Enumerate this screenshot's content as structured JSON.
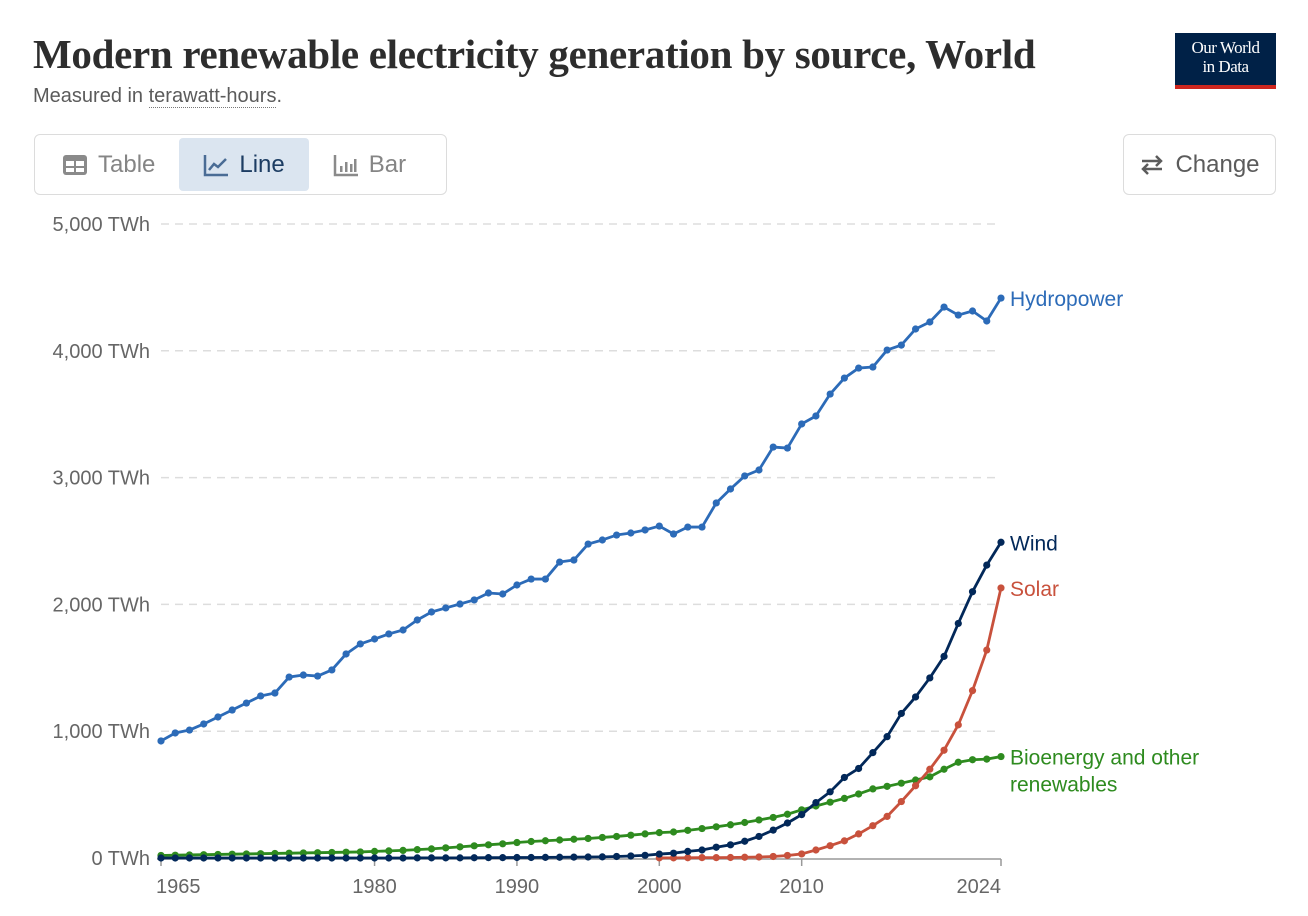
{
  "header": {
    "title": "Modern renewable electricity generation by source, World",
    "subtitle_prefix": "Measured in ",
    "subtitle_unit": "terawatt-hours",
    "subtitle_suffix": ".",
    "logo_line1": "Our World",
    "logo_line2": "in Data"
  },
  "tabs": [
    {
      "label": "Table",
      "icon": "table-icon"
    },
    {
      "label": "Line",
      "icon": "line-chart-icon",
      "active": true
    },
    {
      "label": "Bar",
      "icon": "bar-chart-icon"
    }
  ],
  "change_button": {
    "label": "Change",
    "icon": "swap-arrows-icon"
  },
  "colors": {
    "Hydropower": "#2c6bb8",
    "Wind": "#022859",
    "Solar": "#c8513c",
    "Bioenergy": "#2e8b1f",
    "grid": "#dddddd",
    "axis": "#999999"
  },
  "chart_data": {
    "type": "line",
    "title": "Modern renewable electricity generation by source, World",
    "ylabel": "terawatt-hours",
    "ylim": [
      0,
      5000
    ],
    "xlim": [
      1965,
      2024
    ],
    "yticks": [
      {
        "v": 0,
        "label": "0 TWh"
      },
      {
        "v": 1000,
        "label": "1,000 TWh"
      },
      {
        "v": 2000,
        "label": "2,000 TWh"
      },
      {
        "v": 3000,
        "label": "3,000 TWh"
      },
      {
        "v": 4000,
        "label": "4,000 TWh"
      },
      {
        "v": 5000,
        "label": "5,000 TWh"
      }
    ],
    "xticks": [
      {
        "v": 1965,
        "label": "1965"
      },
      {
        "v": 1980,
        "label": "1980"
      },
      {
        "v": 1990,
        "label": "1990"
      },
      {
        "v": 2000,
        "label": "2000"
      },
      {
        "v": 2010,
        "label": "2010"
      },
      {
        "v": 2024,
        "label": "2024"
      }
    ],
    "grid": true,
    "legend": "inline-right",
    "series": [
      {
        "name": "Hydropower",
        "label": [
          "Hydropower"
        ],
        "color": "#2c6bb8",
        "start": 1965,
        "values": [
          923,
          986,
          1009,
          1057,
          1112,
          1167,
          1222,
          1278,
          1301,
          1427,
          1443,
          1435,
          1483,
          1609,
          1688,
          1727,
          1767,
          1798,
          1877,
          1940,
          1972,
          2003,
          2035,
          2090,
          2082,
          2153,
          2200,
          2200,
          2334,
          2350,
          2476,
          2508,
          2547,
          2563,
          2587,
          2618,
          2555,
          2610,
          2610,
          2800,
          2910,
          3013,
          3060,
          3241,
          3233,
          3423,
          3486,
          3659,
          3785,
          3864,
          3872,
          4006,
          4045,
          4172,
          4227,
          4345,
          4282,
          4314,
          4235,
          4416
        ]
      },
      {
        "name": "Wind",
        "label": [
          "Wind"
        ],
        "color": "#022859",
        "start": 1965,
        "values": [
          0,
          0,
          0,
          0,
          0,
          0,
          0,
          0,
          0,
          0,
          0,
          0,
          0,
          0,
          0,
          0,
          0,
          0,
          1,
          1,
          1,
          1,
          2,
          3,
          3,
          4,
          4,
          5,
          6,
          7,
          8,
          9,
          12,
          16,
          21,
          31,
          38,
          52,
          63,
          85,
          104,
          132,
          170,
          220,
          276,
          342,
          437,
          522,
          635,
          706,
          831,
          957,
          1140,
          1270,
          1420,
          1590,
          1850,
          2100,
          2310,
          2490
        ]
      },
      {
        "name": "Solar",
        "label": [
          "Solar"
        ],
        "color": "#c8513c",
        "start": 2000,
        "values": [
          1,
          1,
          2,
          3,
          3,
          4,
          6,
          8,
          12,
          20,
          32,
          63,
          97,
          135,
          190,
          255,
          328,
          445,
          570,
          700,
          850,
          1050,
          1320,
          1640,
          2130
        ]
      },
      {
        "name": "Bioenergy and other renewables",
        "label": [
          "Bioenergy and other",
          "renewables"
        ],
        "color": "#2e8b1f",
        "start": 1965,
        "values": [
          20,
          22,
          24,
          26,
          28,
          30,
          32,
          34,
          36,
          38,
          40,
          42,
          44,
          46,
          48,
          52,
          56,
          60,
          66,
          72,
          80,
          88,
          96,
          104,
          112,
          122,
          130,
          136,
          142,
          148,
          154,
          162,
          170,
          180,
          190,
          200,
          205,
          218,
          232,
          246,
          262,
          280,
          300,
          320,
          345,
          380,
          410,
          440,
          470,
          505,
          545,
          565,
          590,
          615,
          640,
          700,
          755,
          775,
          780,
          800
        ]
      }
    ]
  }
}
